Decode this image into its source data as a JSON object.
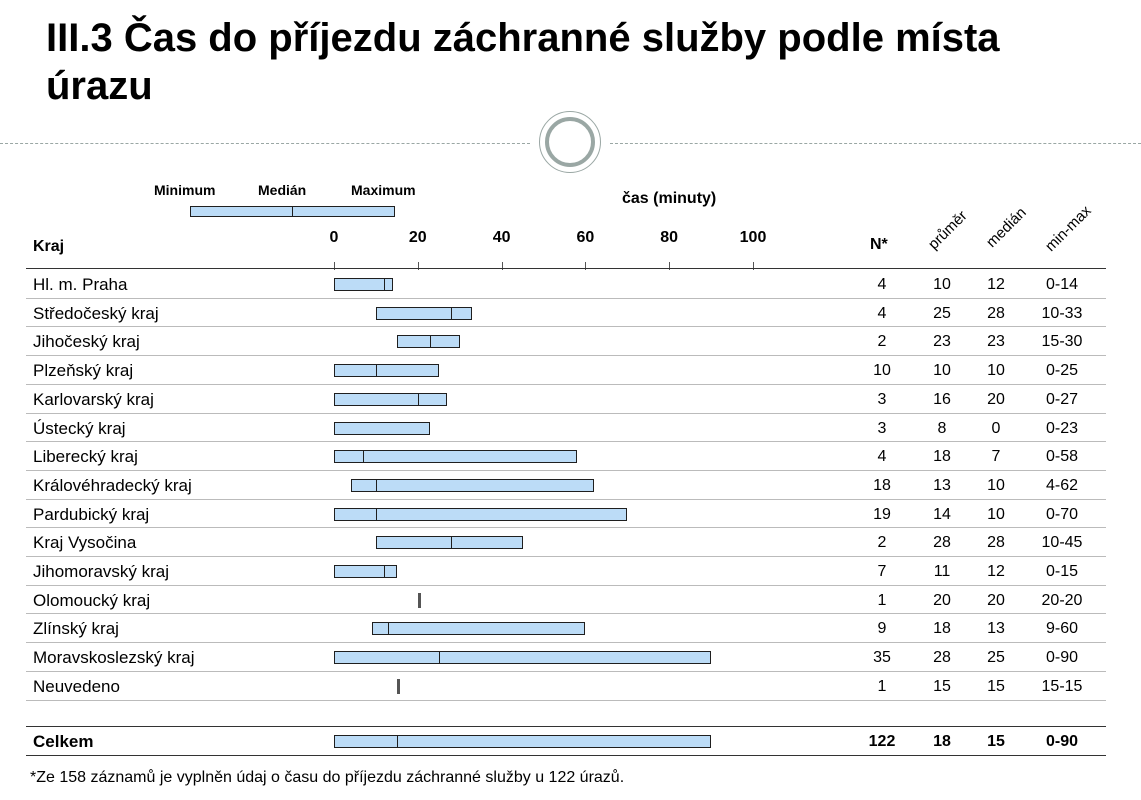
{
  "header": {
    "title": "III.3 Čas do příjezdu záchranné služby podle místa úrazu"
  },
  "legend": {
    "min_label": "Minimum",
    "median_label": "Medián",
    "max_label": "Maximum"
  },
  "columns": {
    "kraj": "Kraj",
    "n": "N*",
    "mean": "průměr",
    "median": "medián",
    "range": "min-max"
  },
  "footnote": "*Ze 158 záznamů je vyplněn údaj o času do příjezdu záchranné služby u 122 úrazů.",
  "colors": {
    "bar_fill": "#bcdcf7",
    "bar_border": "#1f1f1f",
    "divider": "#9aa7a4"
  },
  "chart_data": {
    "type": "table",
    "title": "III.3 Čas do příjezdu záchranné služby podle místa úrazu",
    "xlabel": "čas (minuty)",
    "xlim": [
      0,
      100
    ],
    "xticks": [
      "0",
      "20",
      "40",
      "60",
      "80",
      "100"
    ],
    "rows": [
      {
        "label": "Hl. m. Praha",
        "n": "4",
        "mean": "10",
        "median": "12",
        "range": "0-14",
        "min": 0,
        "med": 12,
        "max": 14
      },
      {
        "label": "Středočeský kraj",
        "n": "4",
        "mean": "25",
        "median": "28",
        "range": "10-33",
        "min": 10,
        "med": 28,
        "max": 33
      },
      {
        "label": "Jihočeský kraj",
        "n": "2",
        "mean": "23",
        "median": "23",
        "range": "15-30",
        "min": 15,
        "med": 23,
        "max": 30
      },
      {
        "label": "Plzeňský kraj",
        "n": "10",
        "mean": "10",
        "median": "10",
        "range": "0-25",
        "min": 0,
        "med": 10,
        "max": 25
      },
      {
        "label": "Karlovarský kraj",
        "n": "3",
        "mean": "16",
        "median": "20",
        "range": "0-27",
        "min": 0,
        "med": 20,
        "max": 27
      },
      {
        "label": "Ústecký kraj",
        "n": "3",
        "mean": "8",
        "median": "0",
        "range": "0-23",
        "min": 0,
        "med": 0,
        "max": 23
      },
      {
        "label": "Liberecký kraj",
        "n": "4",
        "mean": "18",
        "median": "7",
        "range": "0-58",
        "min": 0,
        "med": 7,
        "max": 58
      },
      {
        "label": "Královéhradecký kraj",
        "n": "18",
        "mean": "13",
        "median": "10",
        "range": "4-62",
        "min": 4,
        "med": 10,
        "max": 62
      },
      {
        "label": "Pardubický kraj",
        "n": "19",
        "mean": "14",
        "median": "10",
        "range": "0-70",
        "min": 0,
        "med": 10,
        "max": 70
      },
      {
        "label": "Kraj Vysočina",
        "n": "2",
        "mean": "28",
        "median": "28",
        "range": "10-45",
        "min": 10,
        "med": 28,
        "max": 45
      },
      {
        "label": "Jihomoravský kraj",
        "n": "7",
        "mean": "11",
        "median": "12",
        "range": "0-15",
        "min": 0,
        "med": 12,
        "max": 15
      },
      {
        "label": "Olomoucký kraj",
        "n": "1",
        "mean": "20",
        "median": "20",
        "range": "20-20",
        "min": 20,
        "med": 20,
        "max": 20
      },
      {
        "label": "Zlínský kraj",
        "n": "9",
        "mean": "18",
        "median": "13",
        "range": "9-60",
        "min": 9,
        "med": 13,
        "max": 60
      },
      {
        "label": "Moravskoslezský kraj",
        "n": "35",
        "mean": "28",
        "median": "25",
        "range": "0-90",
        "min": 0,
        "med": 25,
        "max": 90
      },
      {
        "label": "Neuvedeno",
        "n": "1",
        "mean": "15",
        "median": "15",
        "range": "15-15",
        "min": 15,
        "med": 15,
        "max": 15
      }
    ],
    "total": {
      "label": "Celkem",
      "n": "122",
      "mean": "18",
      "median": "15",
      "range": "0-90",
      "min": 0,
      "med": 15,
      "max": 90
    }
  }
}
